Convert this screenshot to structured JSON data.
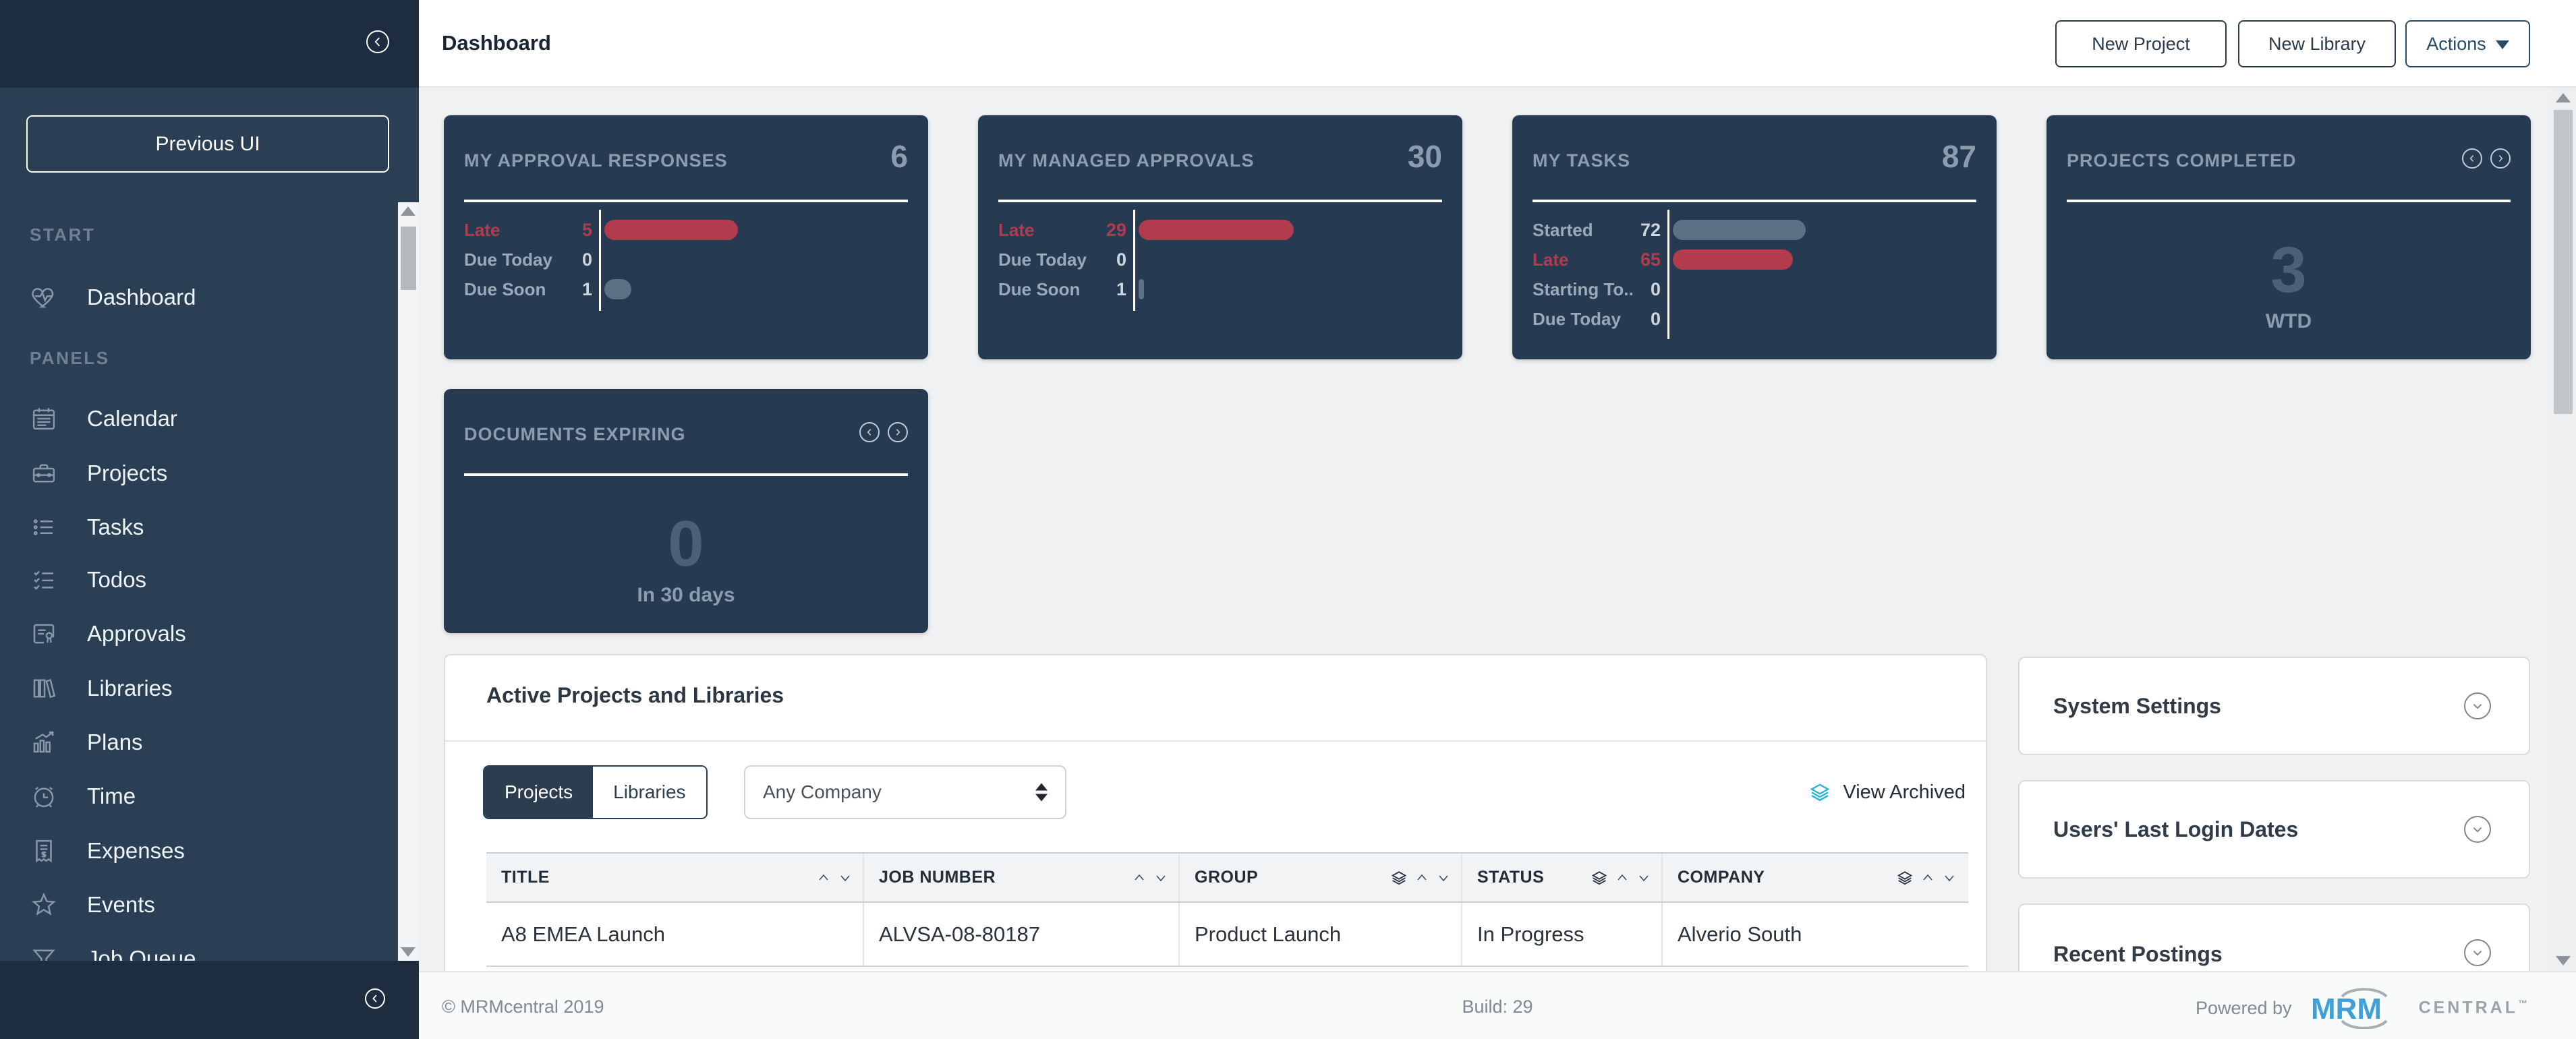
{
  "sidebar": {
    "previous_ui_label": "Previous UI",
    "sections": [
      {
        "label": "START",
        "items": [
          {
            "label": "Dashboard",
            "icon": "heartbeat-icon"
          }
        ]
      },
      {
        "label": "PANELS",
        "items": [
          {
            "label": "Calendar",
            "icon": "calendar-icon"
          },
          {
            "label": "Projects",
            "icon": "briefcase-icon"
          },
          {
            "label": "Tasks",
            "icon": "list-icon"
          },
          {
            "label": "Todos",
            "icon": "checklist-icon"
          },
          {
            "label": "Approvals",
            "icon": "certificate-icon"
          },
          {
            "label": "Libraries",
            "icon": "books-icon"
          },
          {
            "label": "Plans",
            "icon": "bar-chart-icon"
          },
          {
            "label": "Time",
            "icon": "alarm-clock-icon"
          },
          {
            "label": "Expenses",
            "icon": "receipt-icon"
          },
          {
            "label": "Events",
            "icon": "star-icon"
          },
          {
            "label": "Job Queue",
            "icon": "funnel-icon"
          }
        ]
      }
    ]
  },
  "header": {
    "title": "Dashboard",
    "new_project_label": "New Project",
    "new_library_label": "New Library",
    "actions_label": "Actions"
  },
  "cards": [
    {
      "title": "MY APPROVAL RESPONSES",
      "total": "6",
      "rows": [
        {
          "label": "Late",
          "value": "5",
          "tone": "red"
        },
        {
          "label": "Due Today",
          "value": "0",
          "tone": "grey"
        },
        {
          "label": "Due Soon",
          "value": "1",
          "tone": "grey"
        }
      ]
    },
    {
      "title": "MY MANAGED APPROVALS",
      "total": "30",
      "rows": [
        {
          "label": "Late",
          "value": "29",
          "tone": "red"
        },
        {
          "label": "Due Today",
          "value": "0",
          "tone": "grey"
        },
        {
          "label": "Due Soon",
          "value": "1",
          "tone": "grey"
        }
      ]
    },
    {
      "title": "MY TASKS",
      "total": "87",
      "rows": [
        {
          "label": "Started",
          "value": "72",
          "tone": "grey"
        },
        {
          "label": "Late",
          "value": "65",
          "tone": "red"
        },
        {
          "label": "Starting To...",
          "value": "0",
          "tone": "grey"
        },
        {
          "label": "Due Today",
          "value": "0",
          "tone": "grey"
        }
      ]
    }
  ],
  "summary_cards": [
    {
      "title": "PROJECTS COMPLETED",
      "value": "3",
      "caption": "WTD"
    },
    {
      "title": "DOCUMENTS EXPIRING",
      "value": "0",
      "caption": "In 30 days"
    }
  ],
  "active_panel": {
    "heading": "Active Projects and Libraries",
    "tab_projects": "Projects",
    "tab_libraries": "Libraries",
    "company_filter_value": "Any Company",
    "view_archived_label": "View Archived",
    "table": {
      "columns": [
        "TITLE",
        "JOB NUMBER",
        "GROUP",
        "STATUS",
        "COMPANY"
      ],
      "rows": [
        [
          "A8 EMEA Launch",
          "ALVSA-08-80187",
          "Product Launch",
          "In Progress",
          "Alverio South"
        ]
      ]
    }
  },
  "right_panels": [
    {
      "title": "System Settings"
    },
    {
      "title": "Users' Last Login Dates"
    },
    {
      "title": "Recent Postings"
    }
  ],
  "footer": {
    "copyright": "© MRMcentral 2019",
    "build": "Build: 29",
    "powered_by": "Powered by",
    "logo_mrm": "MRM",
    "logo_central": "CENTRAL",
    "logo_tm": "™"
  },
  "colors": {
    "accent_red": "#b23b4d",
    "bar_grey": "#5d7184",
    "card_bg": "#263b51",
    "sidebar_bg": "#2b3f54",
    "sidebar_dark": "#1d2d3f",
    "teal_archive_icon": "#2bb4ce",
    "mrm_blue": "#3fa0d8"
  },
  "chart_data": [
    {
      "type": "bar",
      "title": "MY APPROVAL RESPONSES",
      "total": 6,
      "categories": [
        "Late",
        "Due Today",
        "Due Soon"
      ],
      "values": [
        5,
        0,
        1
      ],
      "series_colors": [
        "#b23b4d",
        "#5d7184",
        "#5d7184"
      ],
      "legend_position": "none",
      "grid": false
    },
    {
      "type": "bar",
      "title": "MY MANAGED APPROVALS",
      "total": 30,
      "categories": [
        "Late",
        "Due Today",
        "Due Soon"
      ],
      "values": [
        29,
        0,
        1
      ],
      "series_colors": [
        "#b23b4d",
        "#5d7184",
        "#5d7184"
      ],
      "legend_position": "none",
      "grid": false
    },
    {
      "type": "bar",
      "title": "MY TASKS",
      "total": 87,
      "categories": [
        "Started",
        "Late",
        "Starting To...",
        "Due Today"
      ],
      "values": [
        72,
        65,
        0,
        0
      ],
      "series_colors": [
        "#5d7184",
        "#b23b4d",
        "#5d7184",
        "#5d7184"
      ],
      "legend_position": "none",
      "grid": false
    },
    {
      "type": "stat",
      "title": "PROJECTS COMPLETED",
      "value": 3,
      "caption": "WTD"
    },
    {
      "type": "stat",
      "title": "DOCUMENTS EXPIRING",
      "value": 0,
      "caption": "In 30 days"
    }
  ]
}
